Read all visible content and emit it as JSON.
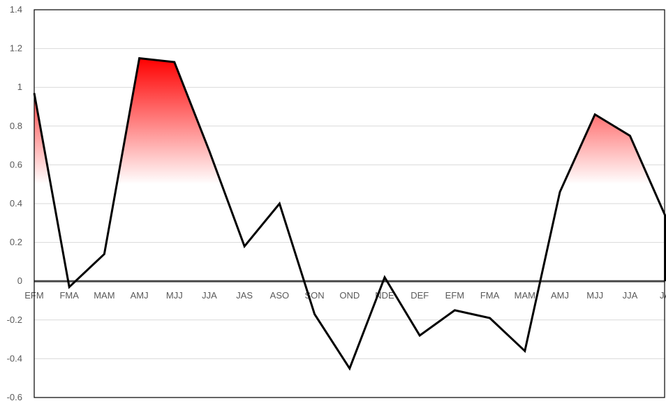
{
  "chart_data": {
    "type": "area",
    "categories": [
      "EFM",
      "FMA",
      "MAM",
      "AMJ",
      "MJJ",
      "JJA",
      "JAS",
      "ASO",
      "SON",
      "OND",
      "NDE",
      "DEF",
      "EFM",
      "FMA",
      "MAM",
      "AMJ",
      "MJJ",
      "JJA",
      "JA"
    ],
    "series": [
      {
        "values": [
          0.97,
          -0.03,
          0.14,
          1.15,
          1.13,
          0.67,
          0.18,
          0.4,
          -0.17,
          -0.45,
          0.02,
          -0.28,
          -0.15,
          -0.19,
          -0.36,
          0.46,
          0.86,
          0.75,
          0.34
        ]
      }
    ],
    "ylim": [
      -0.6,
      1.4
    ],
    "yticks": [
      "1.4",
      "1.2",
      "1",
      "0.8",
      "0.6",
      "0.4",
      "0.2",
      "0",
      "-0.2",
      "-0.4",
      "-0.6"
    ],
    "ytick_values": [
      1.4,
      1.2,
      1.0,
      0.8,
      0.6,
      0.4,
      0.2,
      0.0,
      -0.2,
      -0.4,
      -0.6
    ],
    "fill_threshold": 0.5,
    "colors": {
      "line": "#000000",
      "fill_top": "#ff0000",
      "fill_bottom": "#ffffff",
      "grid": "#d9d9d9",
      "zero_line": "#4a4a4a"
    },
    "grid": true,
    "title": "",
    "xlabel": "",
    "ylabel": ""
  }
}
